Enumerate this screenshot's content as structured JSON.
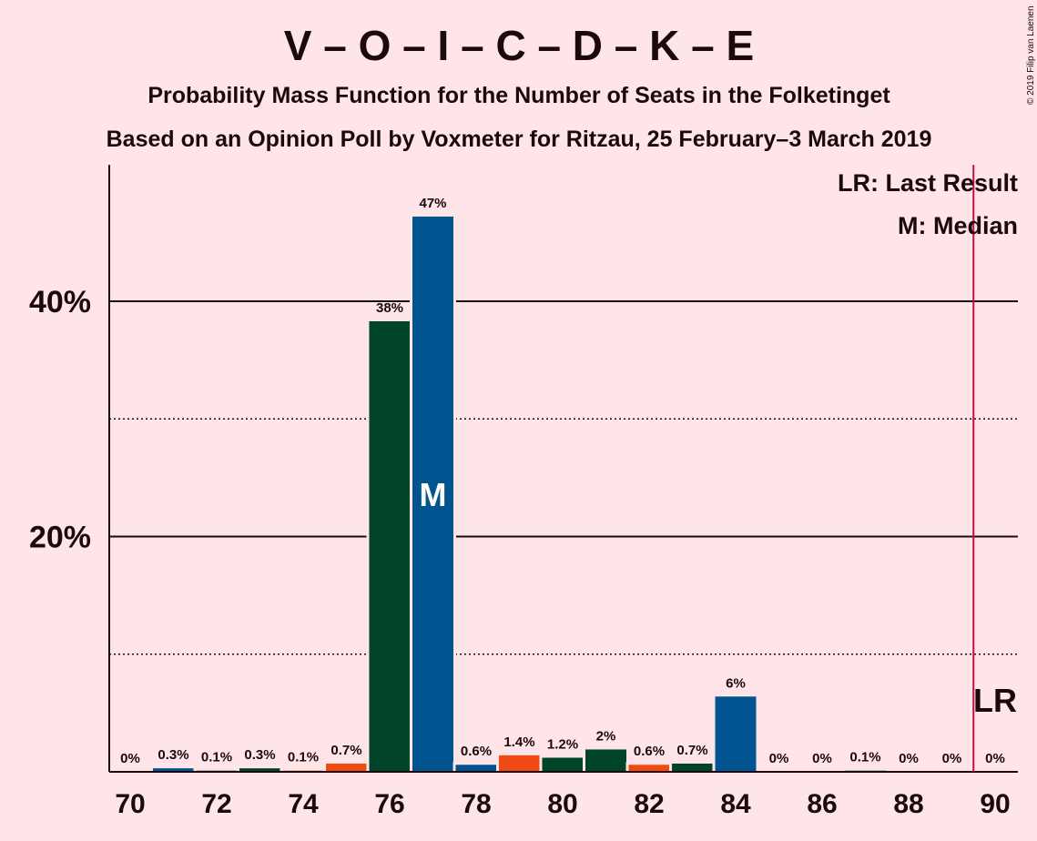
{
  "title": "V – O – I – C – D – K – E",
  "subtitle1": "Probability Mass Function for the Number of Seats in the Folketinget",
  "subtitle2": "Based on an Opinion Poll by Voxmeter for Ritzau, 25 February–3 March 2019",
  "copyright": "© 2019 Filip van Laenen",
  "legend": {
    "lr": "LR: Last Result",
    "median": "M: Median"
  },
  "colors": {
    "background": "#FFE4E8",
    "blue": "#005591",
    "green": "#00442A",
    "orange": "#F04A12",
    "lr_line": "#C01040"
  },
  "chart_data": {
    "type": "bar",
    "x": [
      70,
      71,
      72,
      73,
      74,
      75,
      76,
      77,
      78,
      79,
      80,
      81,
      82,
      83,
      84,
      85,
      86,
      87,
      88,
      89,
      90
    ],
    "values": [
      0,
      0.3,
      0.1,
      0.3,
      0.1,
      0.7,
      38.3,
      47.2,
      0.6,
      1.4,
      1.2,
      1.9,
      0.6,
      0.7,
      6.4,
      0,
      0,
      0.1,
      0,
      0,
      0
    ],
    "labels": [
      "0%",
      "0.3%",
      "0.1%",
      "0.3%",
      "0.1%",
      "0.7%",
      "38%",
      "47%",
      "0.6%",
      "1.4%",
      "1.2%",
      "2%",
      "0.6%",
      "0.7%",
      "6%",
      "0%",
      "0%",
      "0.1%",
      "0%",
      "0%",
      "0%"
    ],
    "bar_colors": [
      "blue",
      "blue",
      "green",
      "green",
      "orange",
      "orange",
      "green",
      "blue",
      "blue",
      "orange",
      "green",
      "green",
      "orange",
      "green",
      "blue",
      "blue",
      "green",
      "blue",
      "green",
      "orange",
      "blue"
    ],
    "xtick_labels": [
      "70",
      "72",
      "74",
      "76",
      "78",
      "80",
      "82",
      "84",
      "86",
      "88",
      "90"
    ],
    "xticks": [
      70,
      72,
      74,
      76,
      78,
      80,
      82,
      84,
      86,
      88,
      90
    ],
    "ytick_labels": [
      "20%",
      "40%"
    ],
    "yticks": [
      20,
      40
    ],
    "minor_gridlines": [
      10,
      30
    ],
    "ylim": [
      0,
      51.6
    ],
    "median": 77,
    "median_label": "M",
    "last_result": 90,
    "last_result_label": "LR",
    "legend_position": "top-right"
  }
}
